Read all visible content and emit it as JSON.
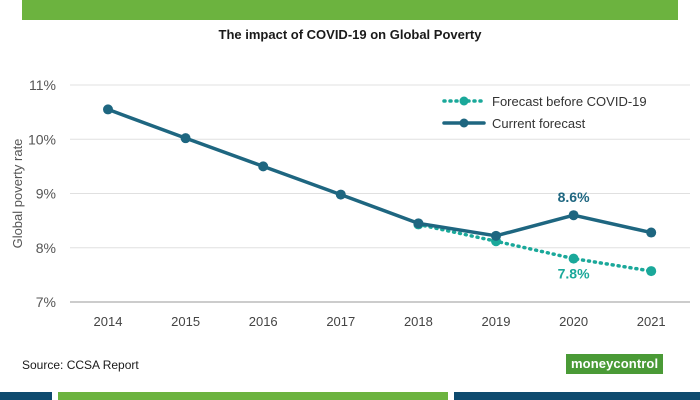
{
  "chart_data": {
    "type": "line",
    "title": "The impact of COVID-19 on Global Poverty",
    "xlabel": "",
    "ylabel": "Global poverty rate",
    "categories": [
      "2014",
      "2015",
      "2016",
      "2017",
      "2018",
      "2019",
      "2020",
      "2021"
    ],
    "y_ticks": [
      "7%",
      "8%",
      "9%",
      "10%",
      "11%"
    ],
    "ylim": [
      7,
      11
    ],
    "grid": true,
    "legend_position": "top-right",
    "series": [
      {
        "name": "Forecast before COVID-19",
        "style": "dotted",
        "color": "#1aa89a",
        "values": [
          null,
          null,
          null,
          null,
          8.43,
          8.12,
          7.8,
          7.57
        ]
      },
      {
        "name": "Current forecast",
        "style": "solid",
        "color": "#1e6680",
        "values": [
          10.55,
          10.02,
          9.5,
          8.98,
          8.45,
          8.22,
          8.6,
          8.28
        ]
      }
    ],
    "annotations": [
      {
        "text": "8.6%",
        "series": "Current forecast",
        "category": "2020",
        "color": "#1e6680"
      },
      {
        "text": "7.8%",
        "series": "Forecast before COVID-19",
        "category": "2020",
        "color": "#1aa89a"
      }
    ]
  },
  "footer": {
    "source": "Source: CCSA Report",
    "logo_text": "moneycontrol"
  }
}
